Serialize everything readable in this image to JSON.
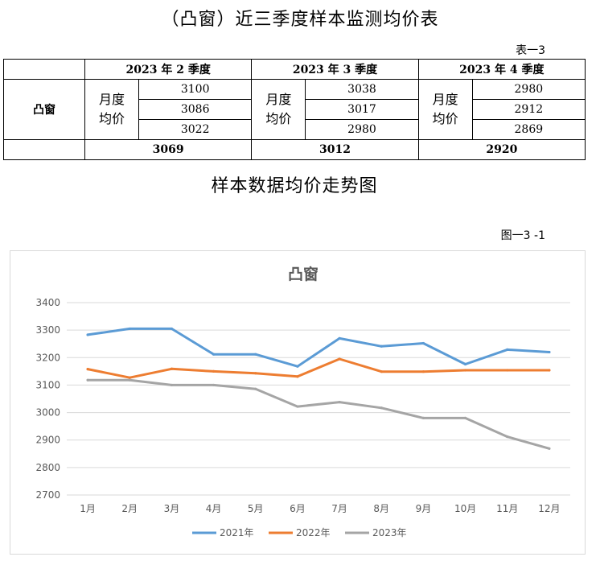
{
  "header": {
    "title": "（凸窗）近三季度样本监测均价表",
    "table_number": "表一3"
  },
  "table": {
    "quarters": [
      "2023 年 2 季度",
      "2023 年 3 季度",
      "2023 年 4 季度"
    ],
    "row_label": "凸窗",
    "sub_label_line1": "月度",
    "sub_label_line2": "均价",
    "monthly": [
      [
        "3100",
        "3086",
        "3022"
      ],
      [
        "3038",
        "3017",
        "2980"
      ],
      [
        "2980",
        "2912",
        "2869"
      ]
    ],
    "averages": [
      "3069",
      "3012",
      "2920"
    ]
  },
  "subtitle": "样本数据均价走势图",
  "figure_number": "图一3 -1",
  "chart_data": {
    "type": "line",
    "title": "凸窗",
    "categories": [
      "1月",
      "2月",
      "3月",
      "4月",
      "5月",
      "6月",
      "7月",
      "8月",
      "9月",
      "10月",
      "11月",
      "12月"
    ],
    "ylim": [
      2700,
      3400
    ],
    "yticks": [
      "2700",
      "2800",
      "2900",
      "3000",
      "3100",
      "3200",
      "3300",
      "3400"
    ],
    "grid": true,
    "legend": "bottom",
    "series": [
      {
        "name": "2021年",
        "color": "#5b9bd5",
        "values": [
          3283,
          3305,
          3305,
          3212,
          3212,
          3168,
          3270,
          3241,
          3252,
          3176,
          3229,
          3220
        ]
      },
      {
        "name": "2022年",
        "color": "#ed7d31",
        "values": [
          3158,
          3127,
          3159,
          3150,
          3143,
          3131,
          3195,
          3149,
          3149,
          3154,
          3154,
          3154
        ]
      },
      {
        "name": "2023年",
        "color": "#a5a5a5",
        "values": [
          3118,
          3118,
          3100,
          3100,
          3086,
          3022,
          3038,
          3017,
          2980,
          2980,
          2912,
          2869
        ]
      }
    ]
  }
}
